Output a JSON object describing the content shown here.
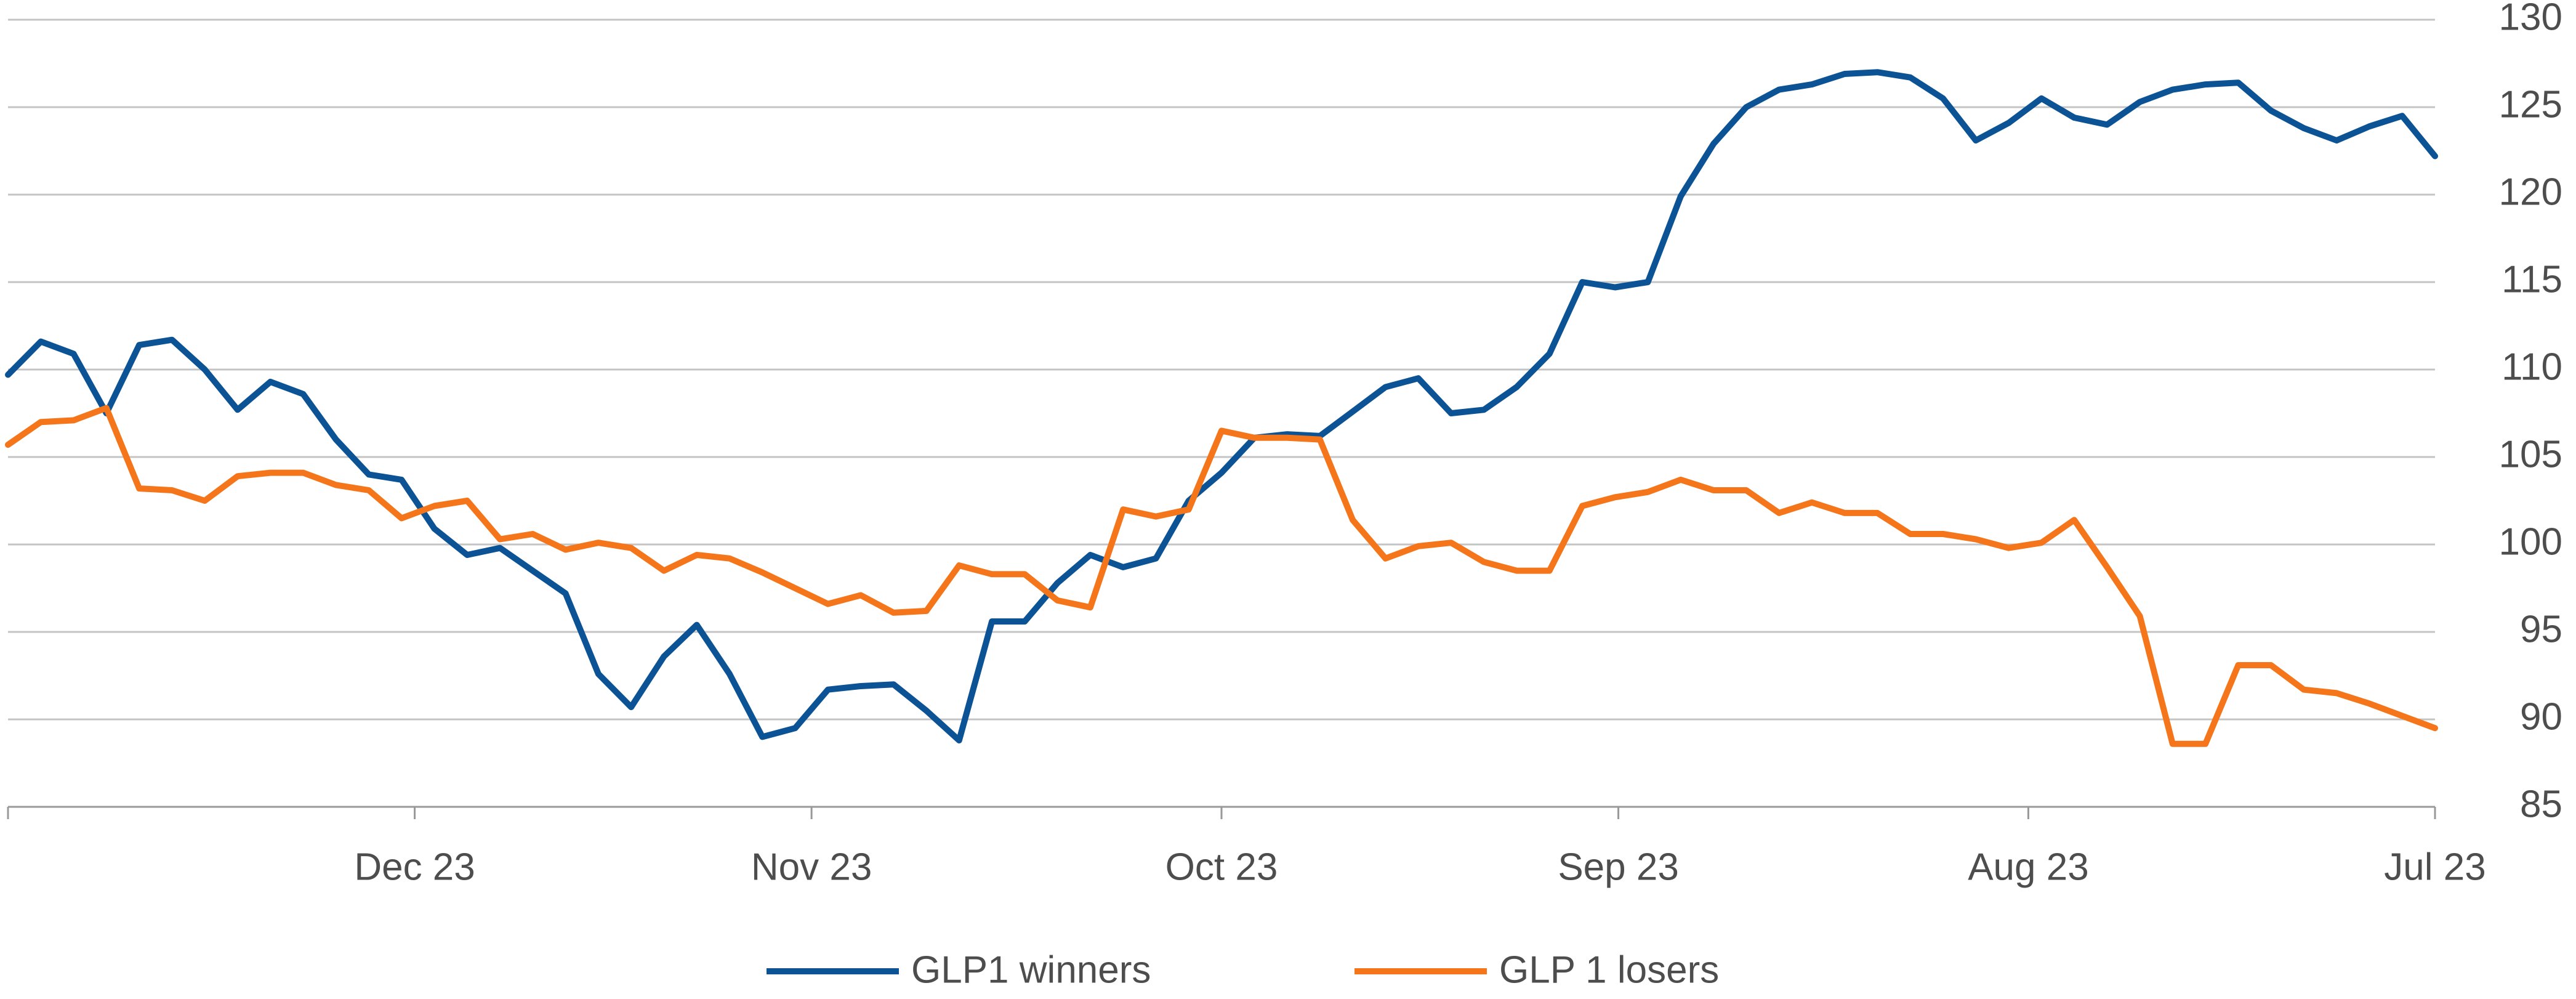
{
  "chart_data": {
    "type": "line",
    "series": [
      {
        "name": "GLP1 winners",
        "color": "#0b5394",
        "values": [
          109.7,
          111.6,
          110.9,
          107.5,
          111.4,
          111.7,
          110.0,
          107.7,
          109.3,
          108.6,
          106.0,
          104.0,
          103.7,
          100.9,
          99.4,
          99.8,
          98.5,
          97.2,
          92.6,
          90.7,
          93.6,
          95.4,
          92.6,
          89.0,
          89.5,
          91.7,
          91.9,
          92.0,
          90.5,
          88.8,
          95.6,
          95.6,
          97.8,
          99.4,
          98.7,
          99.2,
          102.5,
          104.1,
          106.1,
          106.3,
          106.2,
          107.6,
          109.0,
          109.5,
          107.5,
          107.7,
          109.0,
          110.9,
          115.0,
          114.7,
          115.0,
          119.9,
          122.9,
          125.0,
          126.0,
          126.3,
          126.9,
          127.0,
          126.7,
          125.5,
          123.1,
          124.1,
          125.5,
          124.4,
          124.0,
          125.3,
          126.0,
          126.3,
          126.4,
          124.8,
          123.8,
          123.1,
          123.9,
          124.5,
          122.2
        ]
      },
      {
        "name": "GLP 1 losers",
        "color": "#f5761a",
        "values": [
          105.7,
          107.0,
          107.1,
          107.8,
          103.2,
          103.1,
          102.5,
          103.9,
          104.1,
          104.1,
          103.4,
          103.1,
          101.5,
          102.2,
          102.5,
          100.3,
          100.6,
          99.7,
          100.1,
          99.8,
          98.5,
          99.4,
          99.2,
          98.4,
          97.5,
          96.6,
          97.1,
          96.1,
          96.2,
          98.8,
          98.3,
          98.3,
          96.8,
          96.4,
          102.0,
          101.6,
          102.0,
          106.5,
          106.1,
          106.1,
          106.0,
          101.4,
          99.2,
          99.9,
          100.1,
          99.0,
          98.5,
          98.5,
          102.2,
          102.7,
          103.0,
          103.7,
          103.1,
          103.1,
          101.8,
          102.4,
          101.8,
          101.8,
          100.6,
          100.6,
          100.3,
          99.8,
          100.1,
          101.4,
          98.7,
          95.9,
          88.6,
          88.6,
          93.1,
          93.1,
          91.7,
          91.5,
          90.9,
          90.2,
          89.5
        ]
      }
    ],
    "xlim": [
      0,
      74
    ],
    "xticks": [
      {
        "value": 12.4,
        "label": "Dec 23"
      },
      {
        "value": 24.5,
        "label": "Nov 23"
      },
      {
        "value": 37.0,
        "label": "Oct 23"
      },
      {
        "value": 49.1,
        "label": "Sep 23"
      },
      {
        "value": 61.6,
        "label": "Aug 23"
      },
      {
        "value": 74,
        "label": "Jul 23"
      }
    ],
    "ylim": [
      85,
      130
    ],
    "yticks": [
      85,
      90,
      95,
      100,
      105,
      110,
      115,
      120,
      125,
      130
    ],
    "grid": true
  }
}
